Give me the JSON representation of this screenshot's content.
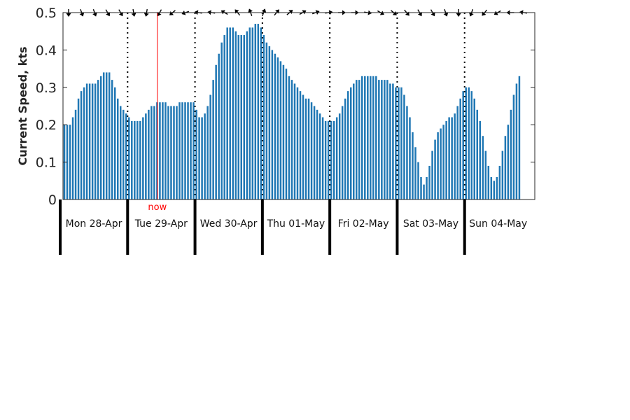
{
  "chart_data": {
    "type": "bar",
    "title": "",
    "xlabel": "",
    "ylabel": "Current Speed, kts",
    "ylim": [
      0,
      0.5
    ],
    "yticks": [
      "0",
      "0.1",
      "0.2",
      "0.3",
      "0.4",
      "0.5"
    ],
    "yticks_values": [
      0,
      0.1,
      0.2,
      0.3,
      0.4,
      0.5
    ],
    "grid": false,
    "bar_color": "#1f77b4",
    "now_color": "#ff0000",
    "day_labels": [
      "Mon 28-Apr",
      "Tue 29-Apr",
      "Wed 30-Apr",
      "Thu 01-May",
      "Fri 02-May",
      "Sat 03-May",
      "Sun 04-May"
    ],
    "hours_per_day": 24,
    "bar_interval_hours": 1,
    "now_label": "now",
    "now_position_days": 1.4,
    "values": [
      0.2,
      0.2,
      0.2,
      0.22,
      0.24,
      0.27,
      0.29,
      0.3,
      0.31,
      0.31,
      0.31,
      0.31,
      0.32,
      0.33,
      0.34,
      0.34,
      0.34,
      0.32,
      0.3,
      0.27,
      0.25,
      0.24,
      0.23,
      0.22,
      0.21,
      0.21,
      0.21,
      0.21,
      0.22,
      0.23,
      0.24,
      0.25,
      0.25,
      0.26,
      0.26,
      0.26,
      0.26,
      0.25,
      0.25,
      0.25,
      0.25,
      0.26,
      0.26,
      0.26,
      0.26,
      0.26,
      0.26,
      0.24,
      0.22,
      0.22,
      0.23,
      0.25,
      0.28,
      0.32,
      0.36,
      0.39,
      0.42,
      0.44,
      0.46,
      0.46,
      0.46,
      0.45,
      0.44,
      0.44,
      0.44,
      0.45,
      0.46,
      0.46,
      0.47,
      0.47,
      0.46,
      0.44,
      0.42,
      0.41,
      0.4,
      0.39,
      0.38,
      0.37,
      0.36,
      0.35,
      0.33,
      0.32,
      0.31,
      0.3,
      0.29,
      0.28,
      0.27,
      0.27,
      0.26,
      0.25,
      0.24,
      0.23,
      0.22,
      0.21,
      0.21,
      0.21,
      0.21,
      0.22,
      0.23,
      0.25,
      0.27,
      0.29,
      0.3,
      0.31,
      0.32,
      0.32,
      0.33,
      0.33,
      0.33,
      0.33,
      0.33,
      0.33,
      0.32,
      0.32,
      0.32,
      0.32,
      0.31,
      0.31,
      0.3,
      0.3,
      0.3,
      0.28,
      0.25,
      0.22,
      0.18,
      0.14,
      0.1,
      0.06,
      0.04,
      0.06,
      0.09,
      0.13,
      0.16,
      0.18,
      0.19,
      0.2,
      0.21,
      0.22,
      0.22,
      0.23,
      0.25,
      0.27,
      0.29,
      0.3,
      0.3,
      0.29,
      0.27,
      0.24,
      0.21,
      0.17,
      0.13,
      0.09,
      0.06,
      0.05,
      0.06,
      0.09,
      0.13,
      0.17,
      0.2,
      0.24,
      0.28,
      0.31,
      0.33
    ],
    "arrow_directions_deg": [
      180,
      160,
      160,
      150,
      150,
      170,
      190,
      210,
      230,
      250,
      280,
      280,
      300,
      320,
      340,
      20,
      40,
      50,
      60,
      70,
      80,
      90,
      90,
      100,
      120,
      130,
      140,
      150,
      150,
      160,
      180,
      200,
      220,
      240,
      270,
      280
    ]
  }
}
